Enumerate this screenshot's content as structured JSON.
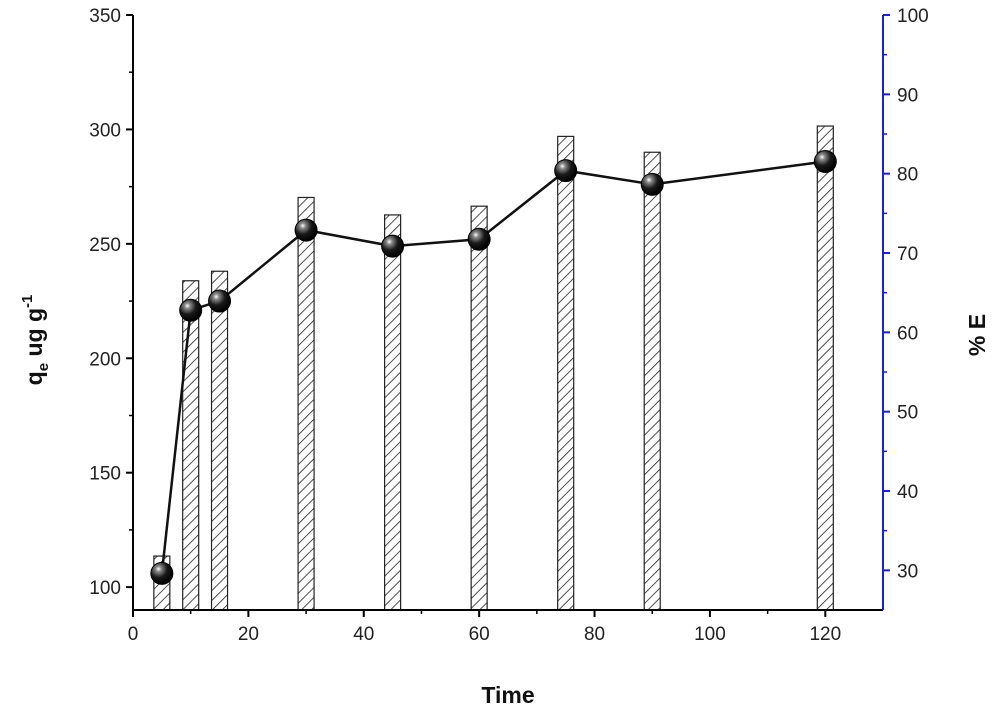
{
  "chart_data": {
    "type": "bar+line",
    "x": [
      5,
      10,
      15,
      30,
      45,
      60,
      75,
      90,
      120
    ],
    "bars": {
      "axis": "right",
      "values": [
        31.8,
        66.5,
        67.7,
        77.0,
        74.8,
        75.9,
        84.7,
        82.7,
        86.0
      ],
      "pattern": "hatched"
    },
    "line": {
      "axis": "left",
      "values": [
        106,
        221,
        225,
        256,
        249,
        252,
        282,
        276,
        286
      ]
    },
    "xlabel": "Time",
    "xlim": [
      0,
      130
    ],
    "xticks": [
      0,
      20,
      40,
      60,
      80,
      100,
      120
    ],
    "ylabel_left": {
      "main": "q",
      "sub": "e",
      "rest": " ug g",
      "sup": "-1"
    },
    "ylim_left": [
      90,
      350
    ],
    "yticks_left": [
      100,
      150,
      200,
      250,
      300,
      350
    ],
    "ylabel_right": "% E",
    "ylim_right": [
      25,
      100
    ],
    "yticks_right": [
      30,
      40,
      50,
      60,
      70,
      80,
      90,
      100
    ],
    "right_axis_color": "#1a1aff",
    "grid": false
  }
}
